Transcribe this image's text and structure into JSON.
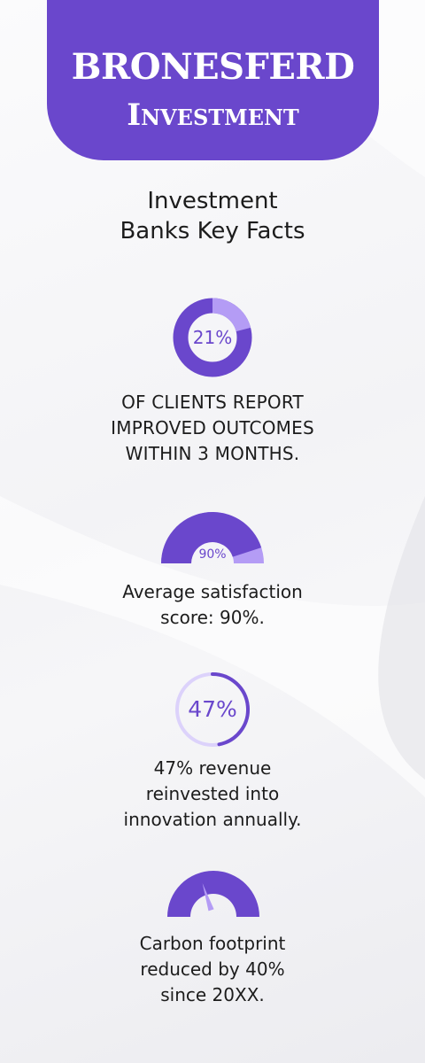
{
  "header": {
    "brand_name": "BRONESFERD",
    "brand_sub": "Investment"
  },
  "title": {
    "line1": "Investment",
    "line2": "Banks Key Facts"
  },
  "colors": {
    "brand": "#6a47cc",
    "accent_light": "#b49cf5",
    "track": "#dcd2fb",
    "text": "#1c1c1c"
  },
  "facts": [
    {
      "value_label": "21%",
      "value": 21,
      "lines": [
        "OF CLIENTS REPORT",
        "IMPROVED OUTCOMES",
        "WITHIN 3 MONTHS."
      ]
    },
    {
      "value_label": "90%",
      "value": 90,
      "lines": [
        "Average satisfaction",
        "score: 90%."
      ]
    },
    {
      "value_label": "47%",
      "value": 47,
      "lines": [
        "47% revenue",
        "reinvested into",
        "innovation annually."
      ]
    },
    {
      "value": 40,
      "lines": [
        "Carbon footprint",
        "reduced by 40%",
        "since 20XX."
      ]
    }
  ]
}
